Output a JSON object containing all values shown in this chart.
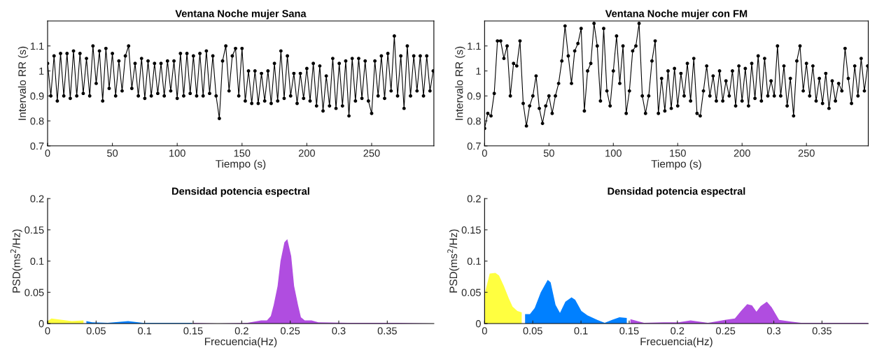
{
  "chart_data": [
    {
      "type": "line",
      "title": "Ventana Noche mujer Sana",
      "xlabel": "Tiempo (s)",
      "ylabel": "Intervalo RR (s)",
      "xlim": [
        0,
        298
      ],
      "xticks": [
        0,
        50,
        100,
        150,
        200,
        250
      ],
      "ylim": [
        0.7,
        1.2
      ],
      "yticks": [
        0.7,
        0.8,
        0.9,
        1,
        1.1
      ],
      "marker": "circle",
      "line_style": "solid",
      "grid": false,
      "legend": false,
      "series": [
        {
          "color": "#000000",
          "x": [
            0,
            2.5,
            5,
            7.5,
            10,
            12.5,
            15,
            17.5,
            20,
            22.5,
            25,
            27.5,
            30,
            32.5,
            35,
            37.5,
            40,
            42.5,
            45,
            47.5,
            50,
            52.5,
            55,
            57.5,
            60,
            62.5,
            65,
            67.5,
            70,
            72.5,
            75,
            77.5,
            80,
            82.5,
            85,
            87.5,
            90,
            92.5,
            95,
            97.5,
            100,
            102.5,
            105,
            107.5,
            110,
            112.5,
            115,
            117.5,
            120,
            122.5,
            125,
            127.5,
            130,
            132.5,
            135,
            137.5,
            140,
            142.5,
            145,
            147.5,
            150,
            152.5,
            155,
            157.5,
            160,
            162.5,
            165,
            167.5,
            170,
            172.5,
            175,
            177.5,
            180,
            182.5,
            185,
            187.5,
            190,
            192.5,
            195,
            197.5,
            200,
            202.5,
            205,
            207.5,
            210,
            212.5,
            215,
            217.5,
            220,
            222.5,
            225,
            227.5,
            230,
            232.5,
            235,
            237.5,
            240,
            242.5,
            245,
            247.5,
            250,
            252.5,
            255,
            257.5,
            260,
            262.5,
            265,
            267.5,
            270,
            272.5,
            275,
            277.5,
            280,
            282.5,
            285,
            287.5,
            290,
            292.5,
            295,
            297.5
          ],
          "values": [
            1.03,
            0.9,
            1.06,
            0.88,
            1.07,
            0.9,
            1.07,
            0.89,
            1.08,
            0.9,
            1.07,
            0.91,
            1.05,
            0.9,
            1.1,
            0.95,
            1.08,
            0.88,
            1.09,
            0.93,
            1.07,
            0.9,
            1.04,
            0.92,
            1.06,
            1.1,
            0.93,
            1.03,
            0.9,
            1.05,
            0.89,
            1.04,
            0.9,
            1.03,
            0.91,
            1.03,
            0.9,
            1.04,
            0.92,
            1.04,
            0.89,
            1.07,
            0.9,
            1.07,
            0.91,
            1.06,
            0.9,
            1.07,
            0.9,
            1.08,
            0.91,
            1.06,
            0.9,
            0.81,
            1.04,
            1.1,
            0.92,
            1.06,
            1.09,
            0.9,
            1.09,
            0.88,
            1.0,
            0.87,
            1.0,
            0.87,
            0.99,
            0.88,
            1.0,
            0.87,
            1.03,
            0.88,
            1.08,
            0.89,
            1.06,
            0.9,
            0.99,
            0.87,
            0.99,
            0.89,
            1.01,
            0.88,
            1.03,
            0.86,
            1.02,
            0.84,
            0.98,
            0.86,
            1.05,
            0.85,
            1.03,
            0.86,
            1.04,
            0.82,
            1.05,
            0.88,
            1.05,
            0.89,
            1.04,
            0.88,
            0.83,
            1.04,
            0.9,
            1.06,
            0.89,
            1.07,
            0.92,
            1.14,
            0.9,
            1.06,
            0.85,
            1.1,
            0.9,
            1.06,
            0.92,
            1.06,
            0.9,
            1.06,
            0.92,
            1.0
          ]
        }
      ]
    },
    {
      "type": "line",
      "title": "Ventana Noche mujer con FM",
      "xlabel": "Tiempo (s)",
      "ylabel": "Intervalo RR (s)",
      "xlim": [
        0,
        298
      ],
      "xticks": [
        0,
        50,
        100,
        150,
        200,
        250
      ],
      "ylim": [
        0.7,
        1.2
      ],
      "yticks": [
        0.7,
        0.8,
        0.9,
        1,
        1.1
      ],
      "marker": "circle",
      "line_style": "solid",
      "grid": false,
      "legend": false,
      "series": [
        {
          "color": "#000000",
          "x": [
            0,
            2.5,
            5,
            7.5,
            10,
            12.5,
            15,
            17.5,
            20,
            22.5,
            25,
            27.5,
            30,
            32.5,
            35,
            37.5,
            40,
            42.5,
            45,
            47.5,
            50,
            52.5,
            55,
            57.5,
            60,
            62.5,
            65,
            67.5,
            70,
            72.5,
            75,
            77.5,
            80,
            82.5,
            85,
            87.5,
            90,
            92.5,
            95,
            97.5,
            100,
            102.5,
            105,
            107.5,
            110,
            112.5,
            115,
            117.5,
            120,
            122.5,
            125,
            127.5,
            130,
            132.5,
            135,
            137.5,
            140,
            142.5,
            145,
            147.5,
            150,
            152.5,
            155,
            157.5,
            160,
            162.5,
            165,
            167.5,
            170,
            172.5,
            175,
            177.5,
            180,
            182.5,
            185,
            187.5,
            190,
            192.5,
            195,
            197.5,
            200,
            202.5,
            205,
            207.5,
            210,
            212.5,
            215,
            217.5,
            220,
            222.5,
            225,
            227.5,
            230,
            232.5,
            235,
            237.5,
            240,
            242.5,
            245,
            247.5,
            250,
            252.5,
            255,
            257.5,
            260,
            262.5,
            265,
            267.5,
            270,
            272.5,
            275,
            277.5,
            280,
            282.5,
            285,
            287.5,
            290,
            292.5,
            295,
            297.5
          ],
          "values": [
            0.77,
            0.83,
            0.82,
            0.91,
            1.12,
            1.12,
            1.05,
            1.1,
            0.9,
            1.03,
            1.02,
            1.12,
            0.87,
            0.78,
            0.86,
            0.9,
            0.98,
            0.85,
            0.79,
            0.86,
            0.9,
            0.83,
            0.9,
            0.95,
            1.04,
            1.18,
            1.06,
            0.95,
            1.08,
            1.11,
            1.17,
            0.84,
            1.0,
            1.03,
            1.19,
            1.1,
            0.88,
            1.17,
            0.92,
            0.86,
            1.0,
            1.14,
            0.95,
            1.1,
            0.83,
            0.92,
            1.08,
            1.1,
            1.19,
            0.9,
            0.83,
            0.9,
            1.04,
            1.12,
            0.83,
            0.97,
            0.84,
            1.0,
            0.85,
            1.01,
            0.86,
            0.99,
            0.9,
            1.03,
            0.88,
            1.05,
            0.83,
            0.82,
            0.92,
            1.02,
            0.9,
            0.98,
            0.88,
            1.0,
            0.88,
            0.96,
            0.9,
            1.0,
            0.86,
            1.02,
            0.88,
            1.01,
            0.86,
            1.03,
            0.89,
            1.06,
            0.88,
            1.05,
            0.9,
            0.96,
            0.9,
            1.1,
            0.9,
            1.02,
            0.86,
            0.97,
            0.82,
            1.04,
            1.1,
            0.92,
            1.03,
            0.9,
            1.02,
            0.88,
            0.97,
            0.87,
            0.99,
            0.85,
            0.96,
            0.88,
            0.95,
            0.92,
            1.09,
            0.97,
            0.87,
            1.02,
            0.9,
            1.05,
            0.92,
            1.02
          ]
        }
      ]
    },
    {
      "type": "area",
      "title": "Densidad potencia espectral",
      "xlabel": "Frecuencia(Hz)",
      "ylabel": "PSD(ms$^{2}$/Hz)",
      "xlim": [
        0,
        0.398
      ],
      "xticks": [
        0,
        0.05,
        0.1,
        0.15,
        0.2,
        0.25,
        0.3,
        0.35
      ],
      "ylim": [
        0,
        0.2
      ],
      "yticks": [
        0,
        0.05,
        0.1,
        0.15,
        0.2
      ],
      "grid": false,
      "legend": false,
      "series": [
        {
          "color": "#ffff40",
          "x": [
            0,
            0.004,
            0.015,
            0.025,
            0.037
          ],
          "values": [
            0.004,
            0.008,
            0.006,
            0.004,
            0.005
          ]
        },
        {
          "color": "#0080ff",
          "x": [
            0.04,
            0.046,
            0.062,
            0.083,
            0.098,
            0.124,
            0.149
          ],
          "values": [
            0.004,
            0.002,
            0.001,
            0.004,
            0.001,
            0.001,
            0.001
          ]
        },
        {
          "color": "#b04de0",
          "x": [
            0.15,
            0.175,
            0.206,
            0.22,
            0.226,
            0.23,
            0.233,
            0.237,
            0.24,
            0.244,
            0.247,
            0.251,
            0.254,
            0.258,
            0.261,
            0.265,
            0.272,
            0.279,
            0.31,
            0.36,
            0.398
          ],
          "values": [
            0.001,
            0,
            0.001,
            0.005,
            0.005,
            0.012,
            0.03,
            0.06,
            0.1,
            0.13,
            0.135,
            0.108,
            0.06,
            0.03,
            0.01,
            0.005,
            0.005,
            0.002,
            0.001,
            0.001,
            0
          ]
        }
      ]
    },
    {
      "type": "area",
      "title": "Densidad potencia espectral",
      "xlabel": "Frecuencia(Hz)",
      "ylabel": "PSD(ms$^{2}$/Hz)",
      "xlim": [
        0,
        0.398
      ],
      "xticks": [
        0,
        0.05,
        0.1,
        0.15,
        0.2,
        0.25,
        0.3,
        0.35
      ],
      "ylim": [
        0,
        0.2
      ],
      "yticks": [
        0,
        0.05,
        0.1,
        0.15,
        0.2
      ],
      "grid": false,
      "legend": false,
      "series": [
        {
          "color": "#ffff40",
          "x": [
            0,
            0.0053,
            0.0112,
            0.015,
            0.02,
            0.0252,
            0.029,
            0.034,
            0.0385
          ],
          "values": [
            0.047,
            0.08,
            0.081,
            0.077,
            0.06,
            0.04,
            0.027,
            0.02,
            0.018
          ]
        },
        {
          "color": "#0080ff",
          "x": [
            0.042,
            0.047,
            0.052,
            0.0583,
            0.0655,
            0.0685,
            0.0736,
            0.0782,
            0.0838,
            0.0902,
            0.094,
            0.1004,
            0.1067,
            0.1169,
            0.1246,
            0.1322,
            0.1399,
            0.1475
          ],
          "values": [
            0.015,
            0.015,
            0.025,
            0.05,
            0.07,
            0.066,
            0.03,
            0.017,
            0.035,
            0.042,
            0.038,
            0.02,
            0.013,
            0.006,
            0.001,
            0.006,
            0.01,
            0.009
          ]
        },
        {
          "color": "#b04de0",
          "x": [
            0.1513,
            0.1654,
            0.1857,
            0.201,
            0.2137,
            0.2316,
            0.2494,
            0.2596,
            0.266,
            0.2724,
            0.2774,
            0.282,
            0.2864,
            0.2928,
            0.2978,
            0.3055,
            0.3182,
            0.3284,
            0.3488,
            0.3666,
            0.398
          ],
          "values": [
            0.007,
            0.001,
            0.002,
            0.002,
            0.005,
            0.001,
            0.006,
            0.008,
            0.02,
            0.031,
            0.029,
            0.019,
            0.028,
            0.035,
            0.026,
            0.006,
            0.003,
            0.001,
            0.001,
            0.001,
            0.001
          ]
        }
      ]
    }
  ]
}
